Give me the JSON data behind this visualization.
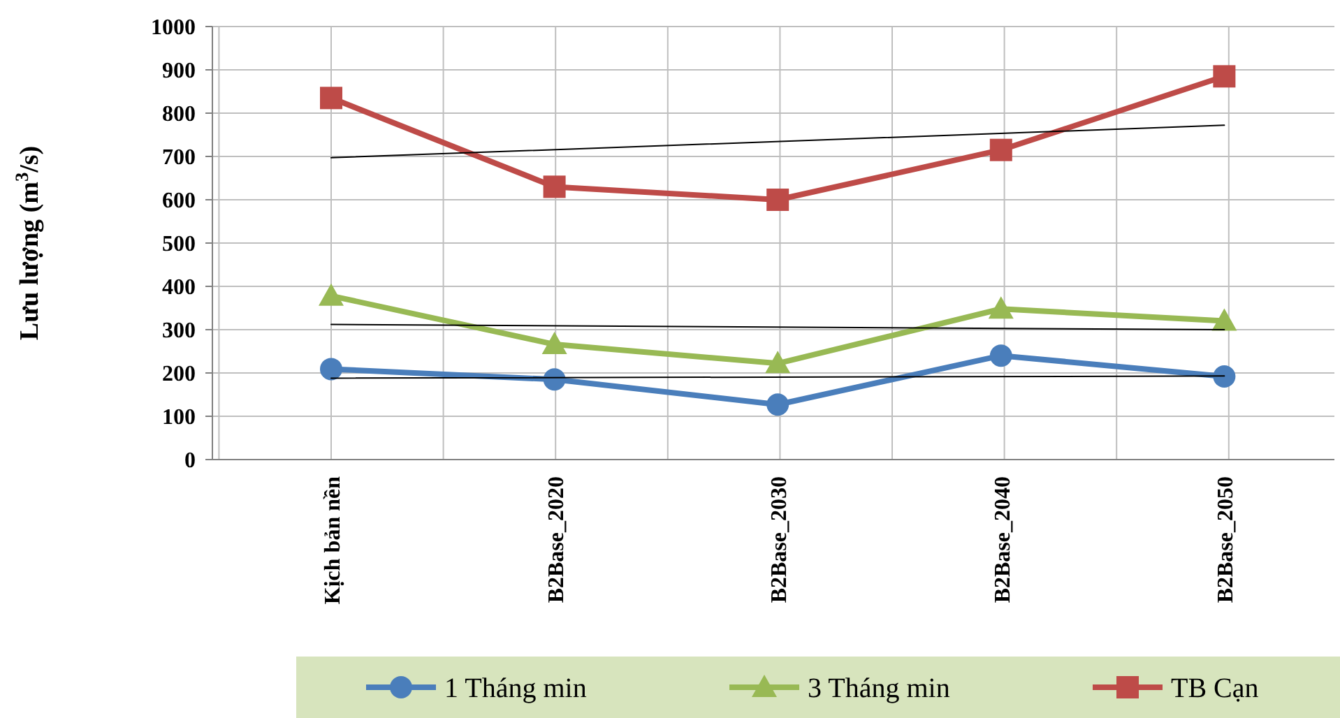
{
  "chart_data": {
    "type": "line",
    "ylabel": "Lưu lượng (m$^{3}$/s)",
    "categories": [
      "Kịch bản nền",
      "B2Base_2020",
      "B2Base_2030",
      "B2Base_2040",
      "B2Base_2050"
    ],
    "series": [
      {
        "name": "1 Tháng min",
        "color": "#4a7ebb",
        "values": [
          209,
          185,
          127,
          240,
          192
        ],
        "marker": "circle"
      },
      {
        "name": "3 Tháng min",
        "color": "#98b954",
        "values": [
          378,
          266,
          222,
          348,
          320
        ],
        "marker": "triangle"
      },
      {
        "name": "TB Cạn",
        "color": "#be4b48",
        "values": [
          835,
          630,
          600,
          715,
          885
        ],
        "marker": "square"
      },
      {
        "color": "#000000",
        "x": [
          "Kịch bản nền",
          "B2Base_2050"
        ],
        "values": [
          188,
          193
        ],
        "marker": "none"
      },
      {
        "color": "#000000",
        "x": [
          "Kịch bản nền",
          "B2Base_2050"
        ],
        "values": [
          312,
          300
        ],
        "marker": "none"
      },
      {
        "color": "#000000",
        "x": [
          "Kịch bản nền",
          "B2Base_2050"
        ],
        "values": [
          697,
          772
        ],
        "marker": "none"
      }
    ],
    "ylim": [
      0,
      1000
    ],
    "yticks": [
      0,
      100,
      200,
      300,
      400,
      500,
      600,
      700,
      800,
      900,
      1000
    ],
    "grid": true,
    "legend": "bottom",
    "line_style": "solid"
  }
}
